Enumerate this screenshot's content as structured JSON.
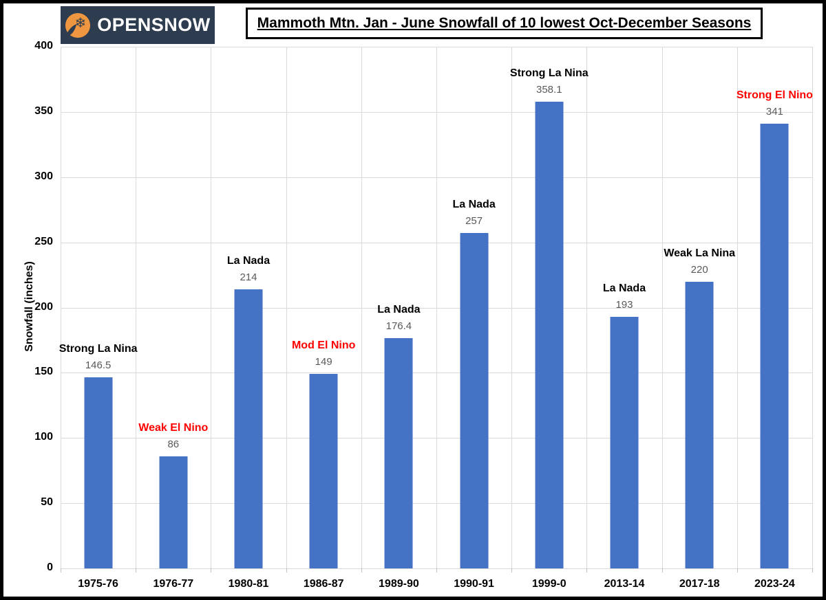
{
  "logo": {
    "text": "OPENSNOW",
    "icon": "opensnow-snowflake-icon",
    "bg_color": "#2d3c4e",
    "icon_color": "#ef9640"
  },
  "header": {
    "title": "Mammoth Mtn. Jan - June Snowfall of 10 lowest Oct-December Seasons"
  },
  "chart_data": {
    "type": "bar",
    "title": "Mammoth Mtn. Jan - June Snowfall of 10 lowest Oct-December Seasons",
    "xlabel": "",
    "ylabel": "Snowfall (inches)",
    "ylim": [
      0,
      400
    ],
    "yticks": [
      0,
      50,
      100,
      150,
      200,
      250,
      300,
      350,
      400
    ],
    "grid": true,
    "legend_position": "none",
    "bar_color": "#4472C4",
    "categories": [
      "1975-76",
      "1976-77",
      "1980-81",
      "1986-87",
      "1989-90",
      "1990-91",
      "1999-0",
      "2013-14",
      "2017-18",
      "2023-24"
    ],
    "values": [
      146.5,
      86,
      214,
      149,
      176.4,
      257,
      358.1,
      193,
      220,
      341
    ],
    "value_labels": [
      "146.5",
      "86",
      "214",
      "149",
      "176.4",
      "257",
      "358.1",
      "193",
      "220",
      "341"
    ],
    "annotations": [
      {
        "label": "Strong La Nina",
        "color": "#000000"
      },
      {
        "label": "Weak El Nino",
        "color": "#ff0000"
      },
      {
        "label": "La Nada",
        "color": "#000000"
      },
      {
        "label": "Mod El Nino",
        "color": "#ff0000"
      },
      {
        "label": "La Nada",
        "color": "#000000"
      },
      {
        "label": "La Nada",
        "color": "#000000"
      },
      {
        "label": "Strong La Nina",
        "color": "#000000"
      },
      {
        "label": "La Nada",
        "color": "#000000"
      },
      {
        "label": "Weak La Nina",
        "color": "#000000"
      },
      {
        "label": "Strong El Nino",
        "color": "#ff0000"
      }
    ],
    "value_label_color": "#595959",
    "gridline_color": "#d9d9d9"
  }
}
